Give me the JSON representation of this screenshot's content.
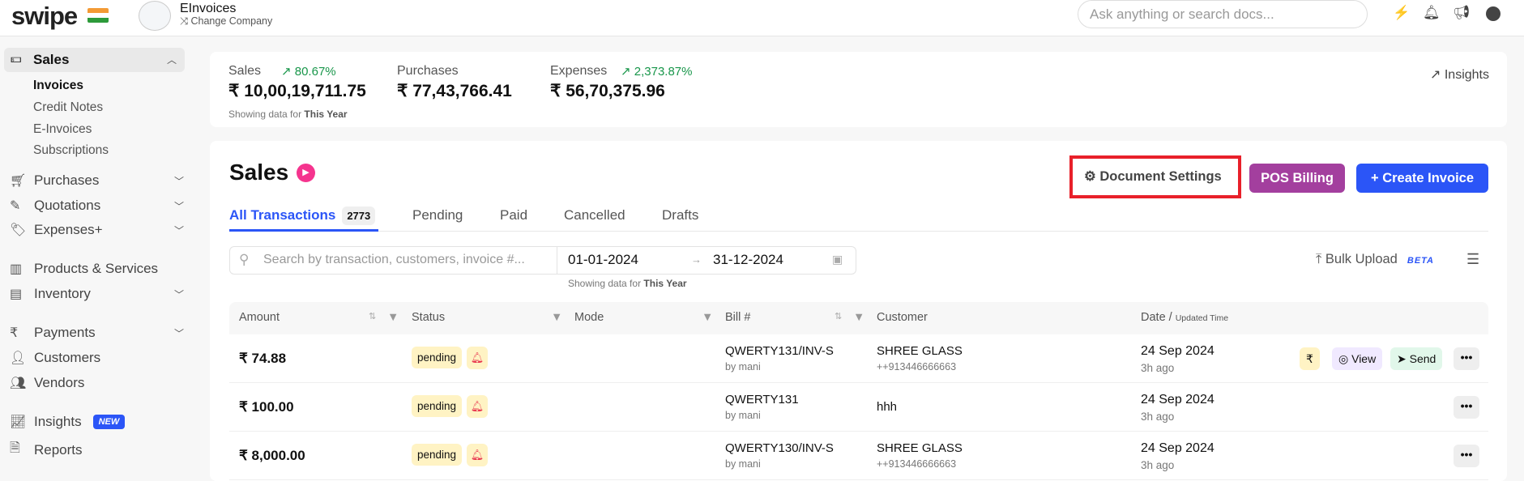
{
  "header": {
    "logo": "swipe",
    "company_name": "EInvoices",
    "change_company": "Change Company",
    "search_placeholder": "Ask anything or search docs...",
    "icons": [
      "bolt-icon",
      "bell-icon",
      "megaphone-icon",
      "user-icon"
    ]
  },
  "sidebar": {
    "sales": "Sales",
    "sales_sub": [
      "Invoices",
      "Credit Notes",
      "E-Invoices",
      "Subscriptions"
    ],
    "items": [
      {
        "label": "Purchases",
        "icon": "cart-icon",
        "chevron": true
      },
      {
        "label": "Quotations",
        "icon": "pencil-icon",
        "chevron": true
      },
      {
        "label": "Expenses+",
        "icon": "tag-icon",
        "chevron": true
      },
      {
        "label": "Products & Services",
        "icon": "barcode-icon",
        "chevron": false
      },
      {
        "label": "Inventory",
        "icon": "inventory-icon",
        "chevron": true
      },
      {
        "label": "Payments",
        "icon": "rupee-icon",
        "chevron": true
      },
      {
        "label": "Customers",
        "icon": "user-icon",
        "chevron": false
      },
      {
        "label": "Vendors",
        "icon": "users-icon",
        "chevron": false
      },
      {
        "label": "Insights",
        "icon": "chart-icon",
        "chevron": false,
        "badge": "NEW"
      },
      {
        "label": "Reports",
        "icon": "report-icon",
        "chevron": false
      }
    ]
  },
  "stats": {
    "sales_label": "Sales",
    "sales_change": "80.67%",
    "sales_value": "₹ 10,00,19,711.75",
    "purchases_label": "Purchases",
    "purchases_value": "₹ 77,43,766.41",
    "expenses_label": "Expenses",
    "expenses_change": "2,373.87%",
    "expenses_value": "₹ 56,70,375.96",
    "showing_prefix": "Showing data for",
    "showing_period": "This Year",
    "insights": "Insights"
  },
  "main": {
    "title": "Sales",
    "doc_settings": "Document Settings",
    "pos_billing": "POS Billing",
    "create_invoice": "Create Invoice",
    "tabs": [
      {
        "label": "All Transactions",
        "count": "2773"
      },
      {
        "label": "Pending"
      },
      {
        "label": "Paid"
      },
      {
        "label": "Cancelled"
      },
      {
        "label": "Drafts"
      }
    ],
    "search_placeholder": "Search by transaction, customers, invoice #...",
    "date_from": "01-01-2024",
    "date_to": "31-12-2024",
    "showing_prefix": "Showing data for",
    "showing_period": "This Year",
    "bulk_upload": "Bulk Upload",
    "beta": "BETA"
  },
  "table": {
    "headers": {
      "amount": "Amount",
      "status": "Status",
      "mode": "Mode",
      "bill": "Bill #",
      "customer": "Customer",
      "date": "Date /",
      "date_sub": "Updated Time"
    },
    "rows": [
      {
        "amount": "₹ 74.88",
        "status": "pending",
        "bill": "QWERTY131/INV-S",
        "by": "by mani",
        "customer": "SHREE GLASS",
        "phone": "++913446666663",
        "date": "24 Sep 2024",
        "ago": "3h ago"
      },
      {
        "amount": "₹ 100.00",
        "status": "pending",
        "bill": "QWERTY131",
        "by": "by mani",
        "customer": "hhh",
        "phone": "",
        "date": "24 Sep 2024",
        "ago": "3h ago"
      },
      {
        "amount": "₹ 8,000.00",
        "status": "pending",
        "bill": "QWERTY130/INV-S",
        "by": "by mani",
        "customer": "SHREE GLASS",
        "phone": "++913446666663",
        "date": "24 Sep 2024",
        "ago": "3h ago"
      }
    ],
    "actions": {
      "rupee": "₹",
      "view": "View",
      "send": "Send"
    }
  },
  "colors": {
    "primary": "#2b55f7",
    "pos": "#a33f9e",
    "highlight": "#e8202a",
    "pending_bg": "#fff3c4",
    "green": "#18964a"
  }
}
